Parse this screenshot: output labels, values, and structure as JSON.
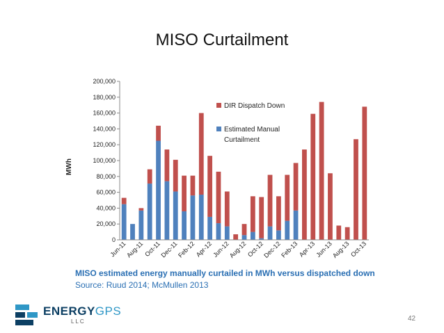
{
  "slide": {
    "title": "MISO Curtailment",
    "page_number": "42",
    "logo_name_dark": "ENERGY",
    "logo_name_light": "GPS",
    "logo_sub": "LLC"
  },
  "caption": {
    "main": "MISO estimated energy manually curtailed in MWh versus dispatched down",
    "source": "Source: Ruud 2014; McMullen 2013"
  },
  "colors": {
    "dispatch": "#c0504d",
    "manual": "#4f81bd",
    "logo_dark": "#0c3f63",
    "logo_light": "#2f97c6"
  },
  "chart_data": {
    "type": "bar",
    "stacked": true,
    "ylabel": "MWh",
    "ylim": [
      0,
      200000
    ],
    "yticks": [
      0,
      20000,
      40000,
      60000,
      80000,
      100000,
      120000,
      140000,
      160000,
      180000,
      200000
    ],
    "ytick_labels": [
      "0",
      "20,000",
      "40,000",
      "60,000",
      "80,000",
      "100,000",
      "120,000",
      "140,000",
      "160,000",
      "180,000",
      "200,000"
    ],
    "categories": [
      "Jun-11",
      "Jul-11",
      "Aug-11",
      "Sep-11",
      "Oct-11",
      "Nov-11",
      "Dec-11",
      "Jan-12",
      "Feb-12",
      "Mar-12",
      "Apr-12",
      "May-12",
      "Jun-12",
      "Jul-12",
      "Aug-12",
      "Sep-12",
      "Oct-12",
      "Nov-12",
      "Dec-12",
      "Jan-13",
      "Feb-13",
      "Mar-13",
      "Apr-13",
      "May-13",
      "Jun-13",
      "Jul-13",
      "Aug-13",
      "Sep-13",
      "Oct-13"
    ],
    "xtick_labels": [
      "Jun-11",
      "Aug-11",
      "Oct-11",
      "Dec-11",
      "Feb-12",
      "Apr-12",
      "Jun-12",
      "Aug-12",
      "Oct-12",
      "Dec-12",
      "Feb-13",
      "Apr-13",
      "Jun-13",
      "Aug-13",
      "Oct-13"
    ],
    "series": [
      {
        "name": "Estimated Manual Curtailment",
        "values": [
          45000,
          20000,
          37000,
          71000,
          125000,
          74000,
          61000,
          36000,
          56000,
          57000,
          29000,
          21000,
          17000,
          0,
          6000,
          10000,
          2000,
          17000,
          12000,
          24000,
          37000,
          0,
          0,
          0,
          0,
          0,
          0,
          0,
          0
        ]
      },
      {
        "name": "DIR Dispatch Down",
        "values": [
          8000,
          0,
          3000,
          18000,
          19000,
          40000,
          40000,
          45000,
          25000,
          103000,
          77000,
          65000,
          44000,
          7000,
          14000,
          45000,
          52000,
          65000,
          43000,
          58000,
          60000,
          114000,
          159000,
          174000,
          84000,
          18000,
          16000,
          127000,
          168000
        ]
      }
    ],
    "legend": {
      "position": "inside-top",
      "entries": [
        {
          "name": "DIR Dispatch Down",
          "lines": [
            "DIR Dispatch Down"
          ]
        },
        {
          "name": "Estimated Manual Curtailment",
          "lines": [
            "Estimated Manual",
            "Curtailment"
          ]
        }
      ]
    }
  }
}
